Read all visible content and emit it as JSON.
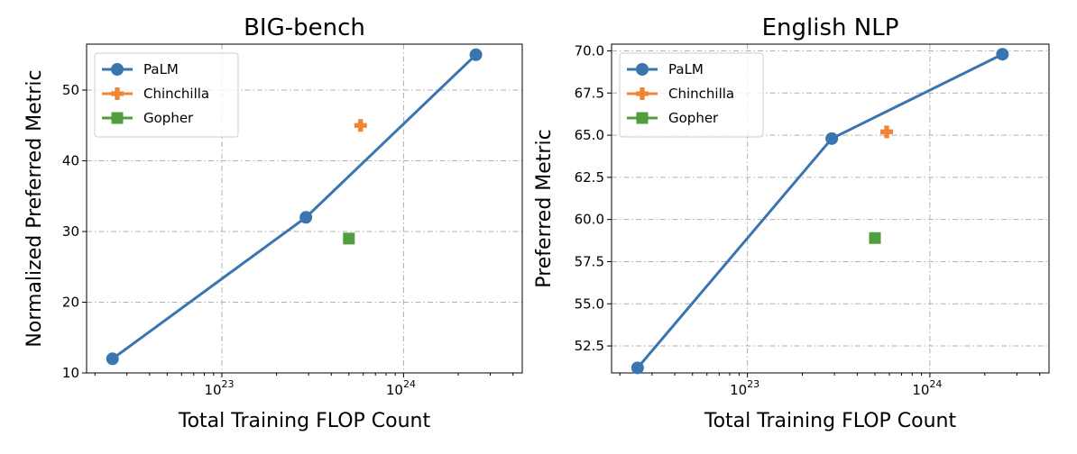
{
  "chart_data": [
    {
      "type": "line",
      "title": "BIG-bench",
      "xlabel": "Total Training FLOP Count",
      "ylabel": "Normalized Preferred Metric",
      "x_scale": "log",
      "xlim": [
        1.8e+22,
        4.5e+24
      ],
      "ylim": [
        10,
        56.5
      ],
      "x_ticks": [
        1e+23,
        1e+24
      ],
      "x_tick_labels": [
        {
          "base": "10",
          "exp": "23"
        },
        {
          "base": "10",
          "exp": "24"
        }
      ],
      "y_ticks": [
        10,
        20,
        30,
        40,
        50
      ],
      "y_tick_labels": [
        "10",
        "20",
        "30",
        "40",
        "50"
      ],
      "grid": true,
      "legend_position": "top-left",
      "series": [
        {
          "name": "PaLM",
          "color": "#3a75b0",
          "marker": "circle",
          "line": true,
          "points": [
            {
              "x": 2.5e+22,
              "y": 12
            },
            {
              "x": 2.9e+23,
              "y": 32
            },
            {
              "x": 2.5e+24,
              "y": 55
            }
          ]
        },
        {
          "name": "Chinchilla",
          "color": "#ef8636",
          "marker": "plus",
          "line": true,
          "points": [
            {
              "x": 5.8e+23,
              "y": 45
            }
          ]
        },
        {
          "name": "Gopher",
          "color": "#519e3e",
          "marker": "square",
          "line": true,
          "points": [
            {
              "x": 5e+23,
              "y": 29
            }
          ]
        }
      ]
    },
    {
      "type": "line",
      "title": "English NLP",
      "xlabel": "Total Training FLOP Count",
      "ylabel": "Preferred Metric",
      "x_scale": "log",
      "xlim": [
        1.8e+22,
        4.5e+24
      ],
      "ylim": [
        50.9,
        70.4
      ],
      "x_ticks": [
        1e+23,
        1e+24
      ],
      "x_tick_labels": [
        {
          "base": "10",
          "exp": "23"
        },
        {
          "base": "10",
          "exp": "24"
        }
      ],
      "y_ticks": [
        52.5,
        55.0,
        57.5,
        60.0,
        62.5,
        65.0,
        67.5,
        70.0
      ],
      "y_tick_labels": [
        "52.5",
        "55.0",
        "57.5",
        "60.0",
        "62.5",
        "65.0",
        "67.5",
        "70.0"
      ],
      "grid": true,
      "legend_position": "top-left",
      "series": [
        {
          "name": "PaLM",
          "color": "#3a75b0",
          "marker": "circle",
          "line": true,
          "points": [
            {
              "x": 2.5e+22,
              "y": 51.2
            },
            {
              "x": 2.9e+23,
              "y": 64.8
            },
            {
              "x": 2.5e+24,
              "y": 69.8
            }
          ]
        },
        {
          "name": "Chinchilla",
          "color": "#ef8636",
          "marker": "plus",
          "line": true,
          "points": [
            {
              "x": 5.8e+23,
              "y": 65.2
            }
          ]
        },
        {
          "name": "Gopher",
          "color": "#519e3e",
          "marker": "square",
          "line": true,
          "points": [
            {
              "x": 5e+23,
              "y": 58.9
            }
          ]
        }
      ]
    }
  ]
}
